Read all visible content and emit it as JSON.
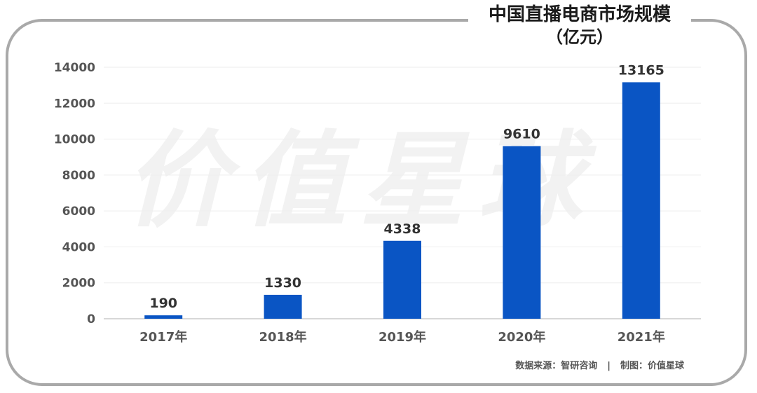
{
  "chart_data": {
    "type": "bar",
    "title": "中国直播电商市场规模",
    "subtitle": "（亿元）",
    "categories": [
      "2017年",
      "2018年",
      "2019年",
      "2020年",
      "2021年"
    ],
    "values": [
      190,
      1330,
      4338,
      9610,
      13165
    ],
    "value_labels": [
      "190",
      "1330",
      "4338",
      "9610",
      "13165"
    ],
    "ylim": [
      0,
      14000
    ],
    "yticks": [
      "0",
      "2000",
      "4000",
      "6000",
      "8000",
      "10000",
      "12000",
      "14000"
    ],
    "grid": true,
    "bar_color": "#0a55c4",
    "grid_color": "#eeeeee"
  },
  "watermark": "价值星球",
  "footer": {
    "source": "数据来源：智研咨询",
    "separator": "|",
    "made_by": "制图：价值星球"
  }
}
